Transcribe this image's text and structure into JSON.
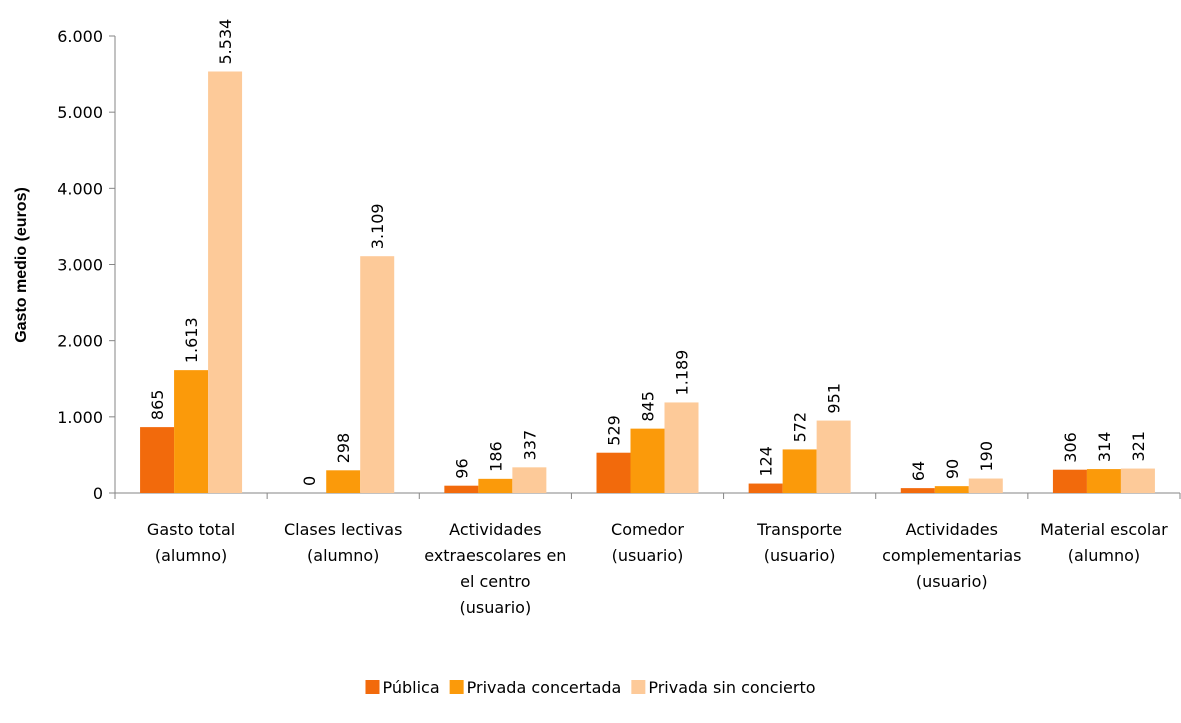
{
  "chart_data": {
    "type": "bar",
    "y_label": "Gasto medio (euros)",
    "categories": [
      [
        "Gasto total",
        "(alumno)"
      ],
      [
        "Clases lectivas",
        "(alumno)"
      ],
      [
        "Actividades",
        "extraescolares en",
        "el centro",
        "(usuario)"
      ],
      [
        "Comedor",
        "(usuario)"
      ],
      [
        "Transporte",
        "(usuario)"
      ],
      [
        "Actividades",
        "complementarias",
        "(usuario)"
      ],
      [
        "Material escolar",
        "(alumno)"
      ]
    ],
    "series": [
      {
        "name": "Pública",
        "color": "#f26a0c",
        "values": [
          865,
          0,
          96,
          529,
          124,
          64,
          306
        ],
        "value_labels": [
          "865",
          "0",
          "96",
          "529",
          "124",
          "64",
          "306"
        ]
      },
      {
        "name": "Privada concertada",
        "color": "#fb9a0a",
        "values": [
          1613,
          298,
          186,
          845,
          572,
          90,
          314
        ],
        "value_labels": [
          "1.613",
          "298",
          "186",
          "845",
          "572",
          "90",
          "314"
        ]
      },
      {
        "name": "Privada sin concierto",
        "color": "#fdca99",
        "values": [
          5534,
          3109,
          337,
          1189,
          951,
          190,
          321
        ],
        "value_labels": [
          "5.534",
          "3.109",
          "337",
          "1.189",
          "951",
          "190",
          "321"
        ]
      }
    ],
    "ylim": [
      0,
      6000
    ],
    "yticks": [
      0,
      {
        "value": 1000,
        "label": "1.000"
      },
      {
        "value": 2000,
        "label": "2.000"
      },
      {
        "value": 3000,
        "label": "3.000"
      },
      {
        "value": 4000,
        "label": "4.000"
      },
      {
        "value": 5000,
        "label": "5.000"
      },
      {
        "value": 6000,
        "label": "6.000"
      }
    ],
    "legend": "bottom"
  }
}
